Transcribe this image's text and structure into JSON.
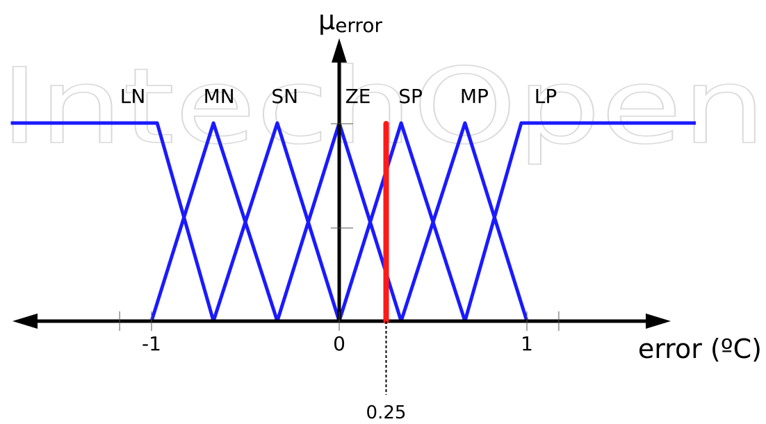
{
  "watermark": "IntechOpen",
  "colors": {
    "membership": "#1a1aff",
    "marker": "#ff1a1a",
    "axis": "#000000"
  },
  "axis": {
    "y_label_main": "μ",
    "y_label_sub": "error",
    "x_label": "error (ºC)"
  },
  "chart_data": {
    "type": "line",
    "x_range": [
      -1.7,
      1.9
    ],
    "y_range": [
      0,
      1
    ],
    "ticks": [
      {
        "value": -1,
        "label": "-1"
      },
      {
        "value": 0,
        "label": "0"
      },
      {
        "value": 1,
        "label": "1"
      }
    ],
    "minor_ticks": [
      -1.17,
      1.17
    ],
    "series": [
      {
        "name": "LN",
        "points": [
          [
            -1.75,
            1
          ],
          [
            -0.97,
            1
          ],
          [
            -0.67,
            0
          ]
        ]
      },
      {
        "name": "MN",
        "points": [
          [
            -1.0,
            0
          ],
          [
            -0.67,
            1
          ],
          [
            -0.33,
            0
          ]
        ]
      },
      {
        "name": "SN",
        "points": [
          [
            -0.67,
            0
          ],
          [
            -0.33,
            1
          ],
          [
            0,
            0
          ]
        ]
      },
      {
        "name": "ZE",
        "points": [
          [
            -0.33,
            0
          ],
          [
            0,
            1
          ],
          [
            0.33,
            0
          ]
        ]
      },
      {
        "name": "SP",
        "points": [
          [
            0,
            0
          ],
          [
            0.33,
            1
          ],
          [
            0.67,
            0
          ]
        ]
      },
      {
        "name": "MP",
        "points": [
          [
            0.33,
            0
          ],
          [
            0.67,
            1
          ],
          [
            1.0,
            0
          ]
        ]
      },
      {
        "name": "LP",
        "points": [
          [
            0.67,
            0
          ],
          [
            0.97,
            1
          ],
          [
            1.9,
            1
          ]
        ]
      }
    ],
    "set_labels": [
      {
        "text": "LN",
        "x": -1.1
      },
      {
        "text": "MN",
        "x": -0.64
      },
      {
        "text": "SN",
        "x": -0.29
      },
      {
        "text": "ZE",
        "x": 0.1
      },
      {
        "text": "SP",
        "x": 0.38
      },
      {
        "text": "MP",
        "x": 0.72
      },
      {
        "text": "LP",
        "x": 1.1
      }
    ],
    "marker": {
      "value": 0.25,
      "label": "0.25"
    }
  }
}
